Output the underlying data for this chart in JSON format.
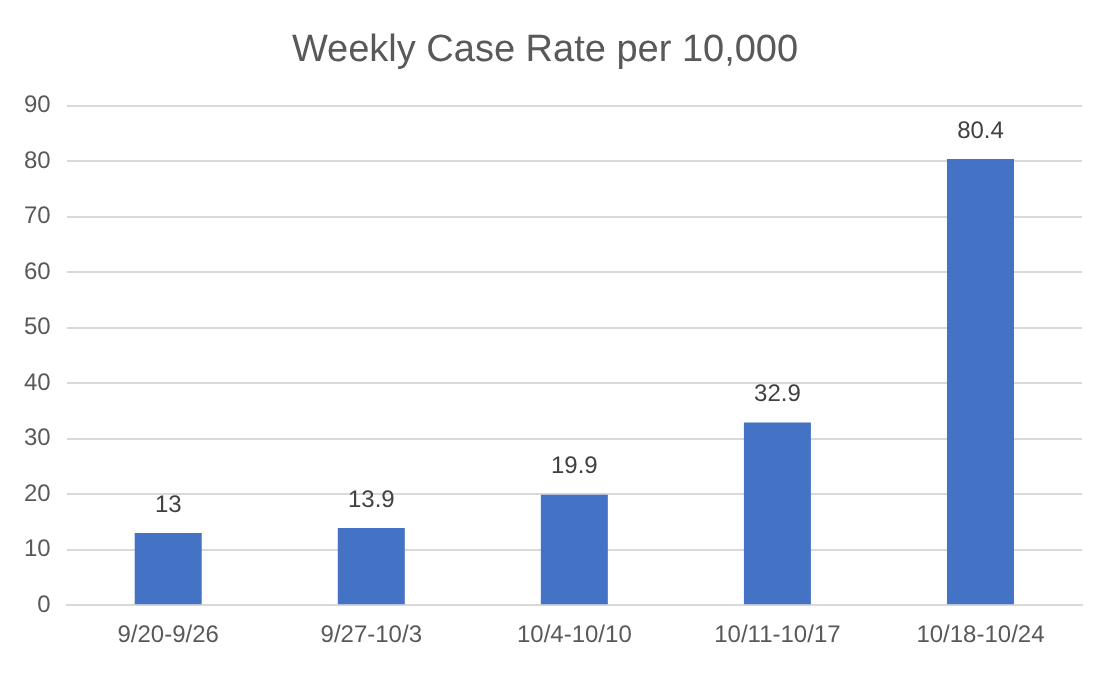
{
  "chart_data": {
    "type": "bar",
    "title": "Weekly Case Rate per 10,000",
    "categories": [
      "9/20-9/26",
      "9/27-10/3",
      "10/4-10/10",
      "10/11-10/17",
      "10/18-10/24"
    ],
    "values": [
      13,
      13.9,
      19.9,
      32.9,
      80.4
    ],
    "color": "#4472c4",
    "ylim": [
      0,
      90
    ],
    "yticks": [
      0,
      10,
      20,
      30,
      40,
      50,
      60,
      70,
      80,
      90
    ],
    "grid": "y",
    "data_labels": true,
    "legend": false
  }
}
